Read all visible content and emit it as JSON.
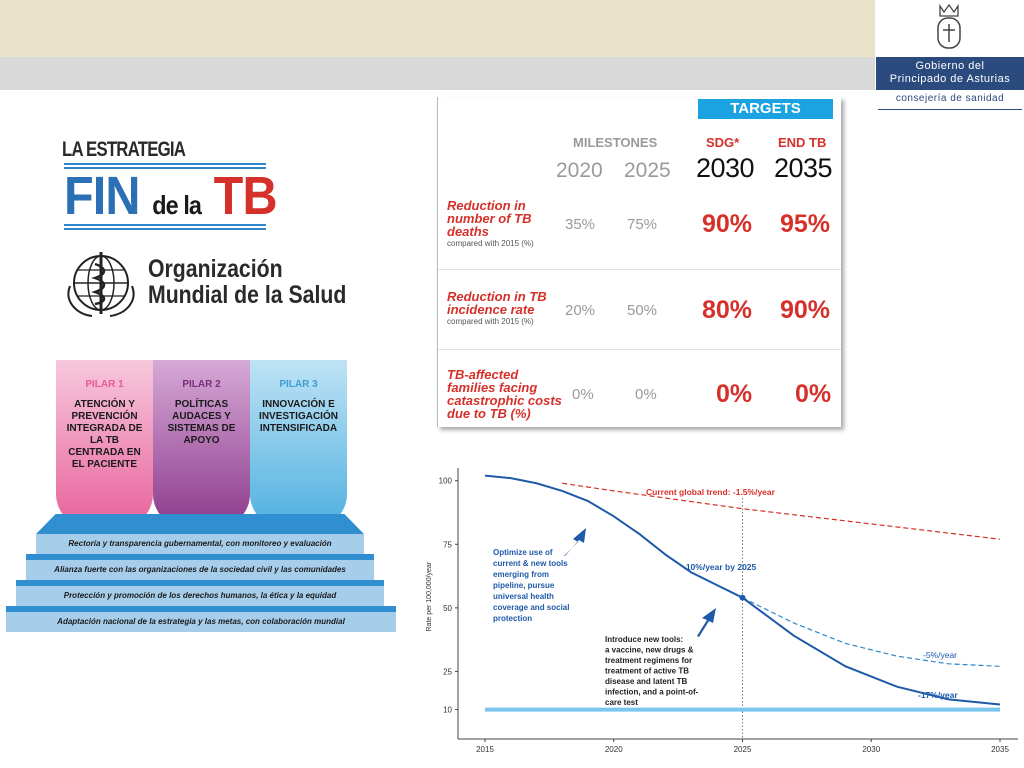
{
  "header": {
    "gov_name": "Gobierno del Principado de Asturias",
    "gov_line1": "Gobierno del",
    "gov_line2": "Principado de Asturias",
    "consejeria": "consejería de sanidad"
  },
  "strategy_logo": {
    "line1": "LA ESTRATEGIA",
    "fin": "FIN",
    "dela": "de la",
    "tb": "TB"
  },
  "who": {
    "line1": "Organización",
    "line2": "Mundial de la Salud"
  },
  "pillars": [
    {
      "title": "PILAR 1",
      "body": "ATENCIÓN Y PREVENCIÓN INTEGRADA DE LA TB CENTRADA EN EL PACIENTE"
    },
    {
      "title": "PILAR 2",
      "body": "POLÍTICAS AUDACES Y SISTEMAS DE APOYO"
    },
    {
      "title": "PILAR 3",
      "body": "INNOVACIÓN E INVESTIGACIÓN INTENSIFICADA"
    }
  ],
  "foundations": [
    "Rectoría y transparencia gubernamental, con monitoreo y evaluación",
    "Alianza fuerte con las organizaciones de la sociedad civil y las comunidades",
    "Protección y promoción de los derechos humanos, la ética y la equidad",
    "Adaptación nacional de la estrategia y las metas, con colaboración mundial"
  ],
  "targets_table": {
    "header": "TARGETS",
    "milestones_label": "MILESTONES",
    "sdg_label": "SDG*",
    "endtb_label": "END TB",
    "years": [
      "2020",
      "2025",
      "2030",
      "2035"
    ],
    "rows": [
      {
        "label_lines": [
          "Reduction in",
          "number of TB",
          "deaths"
        ],
        "sub": "compared with 2015 (%)",
        "values": [
          "35%",
          "75%",
          "90%",
          "95%"
        ]
      },
      {
        "label_lines": [
          "Reduction in TB",
          "incidence rate"
        ],
        "sub": "compared with 2015 (%)",
        "values": [
          "20%",
          "50%",
          "80%",
          "90%"
        ]
      },
      {
        "label_lines": [
          "TB-affected",
          "families facing",
          "catastrophic costs",
          "due to TB (%)"
        ],
        "sub": "",
        "values": [
          "0%",
          "0%",
          "0%",
          "0%"
        ]
      }
    ]
  },
  "chart_data": {
    "type": "line",
    "ylabel": "Rate per 100,000/year",
    "xlim": [
      2015,
      2035
    ],
    "ylim": [
      0,
      105
    ],
    "xticks": [
      "2015",
      "2020",
      "2025",
      "2030",
      "2035"
    ],
    "yticks": [
      "100",
      "75",
      "50",
      "25",
      "10"
    ],
    "series": [
      {
        "name": "Current global trend: -1.5%/year",
        "style": "dashed",
        "color": "#d6302a",
        "x": [
          2018,
          2020,
          2025,
          2030,
          2035
        ],
        "y": [
          99,
          96,
          89,
          83,
          77
        ]
      },
      {
        "name": "-10%/year by 2025",
        "style": "solid",
        "color": "#1e5aa8",
        "x": [
          2015,
          2016,
          2017,
          2018,
          2019,
          2020,
          2021,
          2022,
          2023,
          2024,
          2025
        ],
        "y": [
          102,
          101,
          99,
          96,
          92,
          86,
          79,
          71,
          64,
          59,
          54
        ]
      },
      {
        "name": "-5%/year",
        "style": "dashed",
        "color": "#2e87c9",
        "x": [
          2025,
          2027,
          2029,
          2031,
          2033,
          2035
        ],
        "y": [
          54,
          44,
          36,
          31,
          28,
          27
        ]
      },
      {
        "name": "-17%/year",
        "style": "solid",
        "color": "#1e5aa8",
        "x": [
          2025,
          2027,
          2029,
          2031,
          2033,
          2035
        ],
        "y": [
          54,
          39,
          27,
          19,
          14,
          12
        ]
      },
      {
        "name": "",
        "style": "solid",
        "color": "#7cc6ee",
        "x": [
          2015,
          2035
        ],
        "y": [
          10,
          10
        ]
      }
    ],
    "annotations": {
      "trend": "Current global trend: -1.5%/year",
      "ten": "-10%/year by 2025",
      "five": "-5%/year",
      "seventeen": "-17%/year",
      "optimize": [
        "Optimize use of",
        "current & new tools",
        "emerging from",
        "pipeline, pursue",
        "universal health",
        "coverage and social",
        "protection"
      ],
      "introduce": [
        "Introduce new tools:",
        "a vaccine, new drugs &",
        "treatment regimens for",
        "treatment of active TB",
        "disease and latent TB",
        "infection, and a point-of-",
        "care test"
      ]
    }
  },
  "colors": {
    "red": "#d6302a",
    "blue": "#1e5aa8",
    "light_blue": "#7cc6ee",
    "gov_blue": "#2b4a7d"
  }
}
